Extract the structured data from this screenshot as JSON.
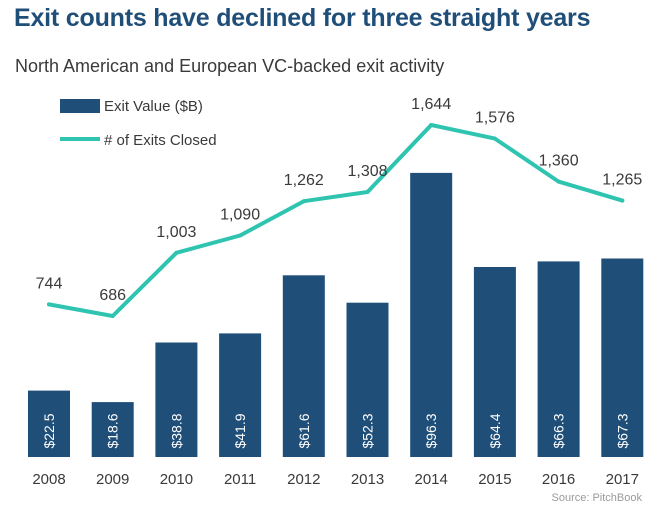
{
  "title": "Exit counts have declined for three straight years",
  "subtitle": "North American and European VC-backed exit activity",
  "source": "Source: PitchBook",
  "colors": {
    "bar": "#1f4e79",
    "line": "#2ec4b0",
    "text": "#3a3a3a",
    "title": "#1f4e79"
  },
  "chart_data": {
    "type": "bar+line",
    "categories": [
      "2008",
      "2009",
      "2010",
      "2011",
      "2012",
      "2013",
      "2014",
      "2015",
      "2016",
      "2017"
    ],
    "series": [
      {
        "name": "Exit Value ($B)",
        "type": "bar",
        "values": [
          22.5,
          18.6,
          38.8,
          41.9,
          61.6,
          52.3,
          96.3,
          64.4,
          66.3,
          67.3
        ],
        "labels": [
          "$22.5",
          "$18.6",
          "$38.8",
          "$41.9",
          "$61.6",
          "$52.3",
          "$96.3",
          "$64.4",
          "$66.3",
          "$67.3"
        ]
      },
      {
        "name": "# of Exits Closed",
        "type": "line",
        "values": [
          744,
          686,
          1003,
          1090,
          1262,
          1308,
          1644,
          1576,
          1360,
          1265
        ],
        "labels": [
          "744",
          "686",
          "1,003",
          "1,090",
          "1,262",
          "1,308",
          "1,644",
          "1,576",
          "1,360",
          "1,265"
        ]
      }
    ],
    "legend": [
      "Exit Value ($B)",
      "# of Exits Closed"
    ],
    "legend_position": "top-left",
    "bar_axis_range": [
      0,
      110
    ],
    "line_axis_range": [
      200,
      1800
    ],
    "grid": false
  }
}
